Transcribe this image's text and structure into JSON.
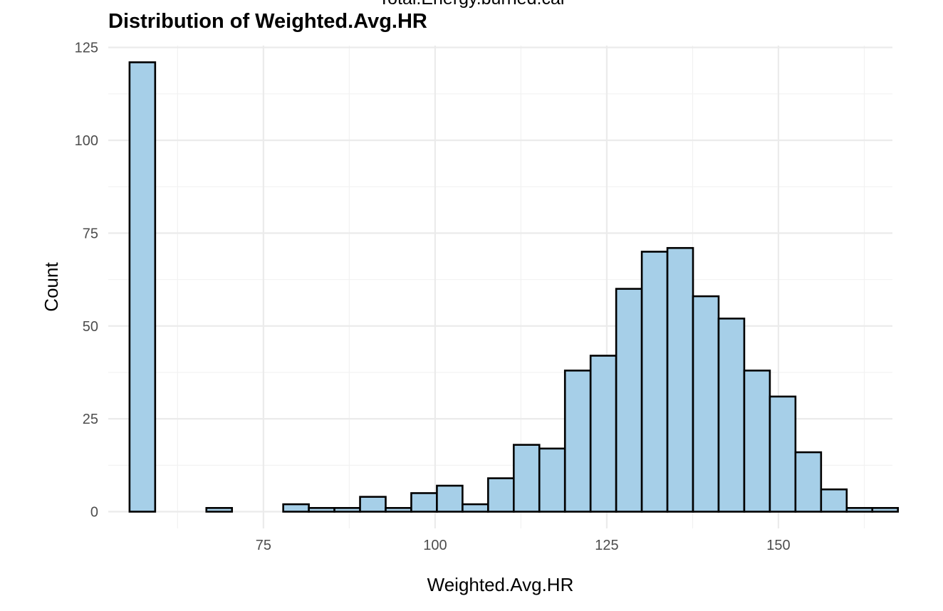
{
  "subtitle_clipped": "Total.Energy.burned.cal",
  "chart_data": {
    "type": "bar",
    "title": "Distribution of Weighted.Avg.HR",
    "xlabel": "Weighted.Avg.HR",
    "ylabel": "Count",
    "xlim": [
      52.4,
      166.6
    ],
    "ylim": [
      -4.5,
      125.5
    ],
    "x_ticks": [
      75,
      100,
      125,
      150
    ],
    "y_ticks": [
      0,
      25,
      50,
      75,
      100,
      125
    ],
    "bin_width": 3.73,
    "bin_start": 55.5,
    "values": [
      121,
      0,
      0,
      1,
      0,
      0,
      2,
      1,
      1,
      4,
      1,
      5,
      7,
      2,
      9,
      18,
      17,
      38,
      42,
      60,
      70,
      71,
      58,
      52,
      38,
      31,
      16,
      6,
      1,
      1
    ],
    "fill": "#a6cfe8",
    "stroke": "#000000",
    "grid": true
  }
}
